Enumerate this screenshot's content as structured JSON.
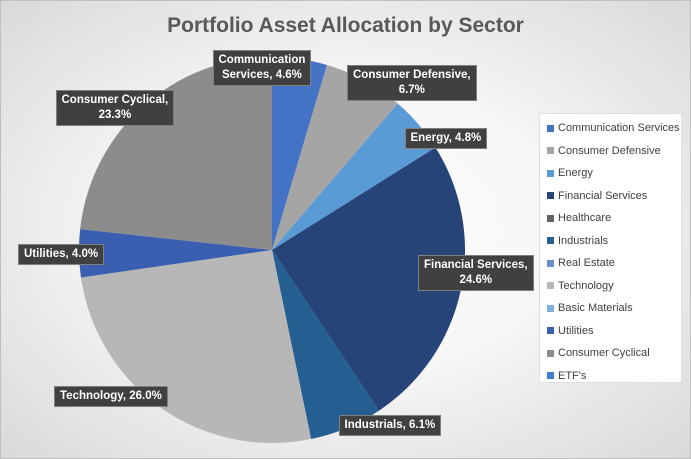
{
  "chart_data": {
    "type": "pie",
    "title": "Portfolio Asset Allocation by Sector",
    "slices": [
      {
        "name": "Communication Services",
        "value": 4.6,
        "color": "#4472c4",
        "label_lines": [
          "Communication",
          "Services, 4.6%"
        ]
      },
      {
        "name": "Consumer Defensive",
        "value": 6.7,
        "color": "#a5a5a5",
        "label_lines": [
          "Consumer Defensive,",
          "6.7%"
        ]
      },
      {
        "name": "Energy",
        "value": 4.8,
        "color": "#5b9bd5",
        "label_lines": [
          "Energy, 4.8%"
        ]
      },
      {
        "name": "Financial Services",
        "value": 24.6,
        "color": "#264478",
        "label_lines": [
          "Financial Services,",
          "24.6%"
        ]
      },
      {
        "name": "Healthcare",
        "value": 0,
        "color": "#636363",
        "label_lines": []
      },
      {
        "name": "Industrials",
        "value": 6.1,
        "color": "#255e91",
        "label_lines": [
          "Industrials, 6.1%"
        ]
      },
      {
        "name": "Real Estate",
        "value": 0,
        "color": "#698ed0",
        "label_lines": []
      },
      {
        "name": "Technology",
        "value": 26.0,
        "color": "#b7b7b7",
        "label_lines": [
          "Technology, 26.0%"
        ]
      },
      {
        "name": "Basic Materials",
        "value": 0,
        "color": "#7cafdd",
        "label_lines": []
      },
      {
        "name": "Utilities",
        "value": 4.0,
        "color": "#3a5fb0",
        "label_lines": [
          "Utilities, 4.0%"
        ]
      },
      {
        "name": "Consumer Cyclical",
        "value": 23.3,
        "color": "#8c8c8c",
        "label_lines": [
          "Consumer Cyclical,",
          "23.3%"
        ]
      },
      {
        "name": "ETF's",
        "value": 0,
        "color": "#3f7fd0",
        "label_lines": []
      }
    ],
    "legend_position": "right"
  }
}
